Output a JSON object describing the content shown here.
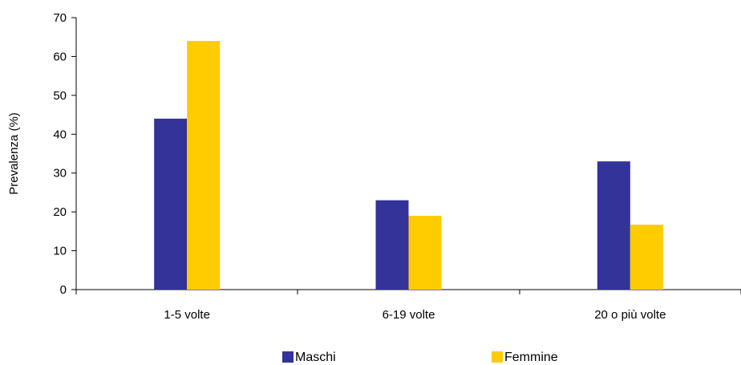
{
  "chart_data": {
    "type": "bar",
    "title": "",
    "xlabel": "",
    "ylabel": "Prevalenza (%)",
    "categories": [
      "1-5 volte",
      "6-19 volte",
      "20 o più volte"
    ],
    "series": [
      {
        "name": "Maschi",
        "values": [
          44,
          23,
          33
        ],
        "color": "#333399"
      },
      {
        "name": "Femmine",
        "values": [
          64,
          19,
          16.7
        ],
        "color": "#FFCC00"
      }
    ],
    "ylim": [
      0,
      70
    ],
    "yticks": [
      0,
      10,
      20,
      30,
      40,
      50,
      60,
      70
    ],
    "grid": false,
    "legend_position": "bottom"
  }
}
